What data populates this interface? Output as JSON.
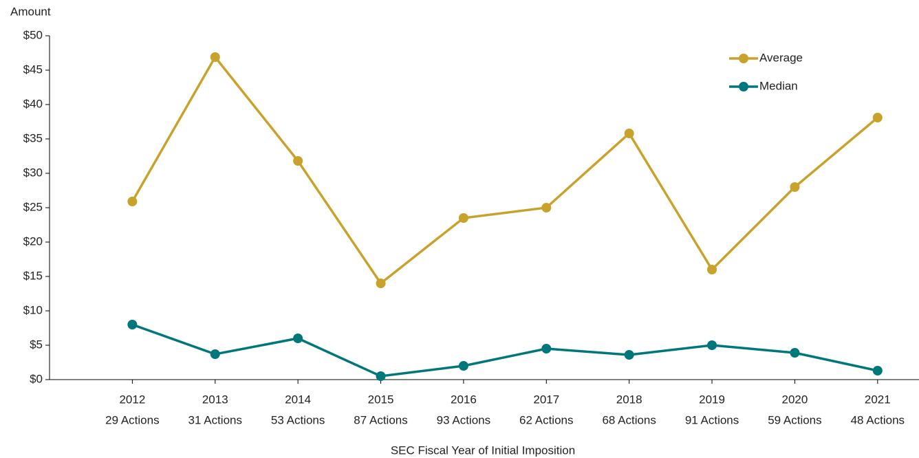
{
  "chart_data": {
    "type": "line",
    "y_label": "Amount",
    "x_label": "SEC Fiscal Year of Initial Imposition",
    "categories": [
      "2012",
      "2013",
      "2014",
      "2015",
      "2016",
      "2017",
      "2018",
      "2019",
      "2020",
      "2021"
    ],
    "category_sublabels": [
      "29 Actions",
      "31 Actions",
      "53 Actions",
      "87 Actions",
      "93 Actions",
      "62 Actions",
      "68 Actions",
      "91 Actions",
      "59 Actions",
      "48 Actions"
    ],
    "series": [
      {
        "name": "Average",
        "color": "#c8a22a",
        "values": [
          25.9,
          46.9,
          31.8,
          14.0,
          23.5,
          25.0,
          35.8,
          16.0,
          28.0,
          38.1
        ]
      },
      {
        "name": "Median",
        "color": "#00777a",
        "values": [
          8.0,
          3.7,
          6.0,
          0.5,
          2.0,
          4.5,
          3.6,
          5.0,
          3.9,
          1.3
        ]
      }
    ],
    "ylim": [
      0,
      50
    ],
    "yticks": [
      {
        "value": 0,
        "label": "$0"
      },
      {
        "value": 5,
        "label": "$5"
      },
      {
        "value": 10,
        "label": "$10"
      },
      {
        "value": 15,
        "label": "$15"
      },
      {
        "value": 20,
        "label": "$20"
      },
      {
        "value": 25,
        "label": "$25"
      },
      {
        "value": 30,
        "label": "$30"
      },
      {
        "value": 35,
        "label": "$35"
      },
      {
        "value": 40,
        "label": "$40"
      },
      {
        "value": 45,
        "label": "$45"
      },
      {
        "value": 50,
        "label": "$50"
      }
    ],
    "grid": false,
    "legend": "upper right"
  }
}
